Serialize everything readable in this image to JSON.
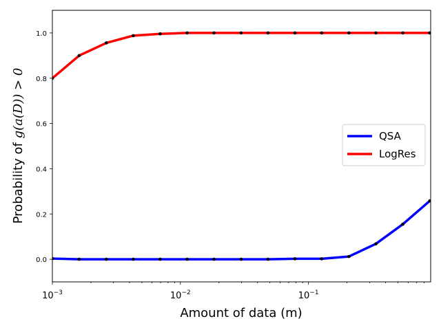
{
  "chart_data": {
    "type": "line",
    "xlabel": "Amount of data (m)",
    "ylabel_prefix": "Probability of ",
    "ylabel_math": "g(a(D)) > 0",
    "xscale": "log",
    "xlim": [
      0.001,
      0.9
    ],
    "ylim": [
      -0.1,
      1.1
    ],
    "xticks": [
      {
        "value": 0.001,
        "base": "10",
        "exp": "−3"
      },
      {
        "value": 0.01,
        "base": "10",
        "exp": "−2"
      },
      {
        "value": 0.1,
        "base": "10",
        "exp": "−1"
      }
    ],
    "yticks": [
      {
        "value": 0.0,
        "label": "0.0"
      },
      {
        "value": 0.2,
        "label": "0.2"
      },
      {
        "value": 0.4,
        "label": "0.4"
      },
      {
        "value": 0.6,
        "label": "0.6"
      },
      {
        "value": 0.8,
        "label": "0.8"
      },
      {
        "value": 1.0,
        "label": "1.0"
      }
    ],
    "x": [
      0.001,
      0.00162,
      0.00264,
      0.00428,
      0.00695,
      0.0113,
      0.0183,
      0.0298,
      0.0483,
      0.0785,
      0.127,
      0.207,
      0.336,
      0.546,
      0.886
    ],
    "series": [
      {
        "name": "QSA",
        "color": "#0000ff",
        "values": [
          0.003,
          0.0,
          0.0,
          0.0,
          0.0,
          0.0,
          0.0,
          0.0,
          0.0,
          0.002,
          0.002,
          0.012,
          0.068,
          0.155,
          0.258
        ]
      },
      {
        "name": "LogRes",
        "color": "#ff0000",
        "values": [
          0.8,
          0.9,
          0.956,
          0.988,
          0.996,
          1.0,
          1.0,
          1.0,
          1.0,
          1.0,
          1.0,
          1.0,
          1.0,
          1.0,
          1.0
        ]
      }
    ],
    "marker_color": "#000000",
    "grid": false,
    "legend_position": "center-right"
  }
}
